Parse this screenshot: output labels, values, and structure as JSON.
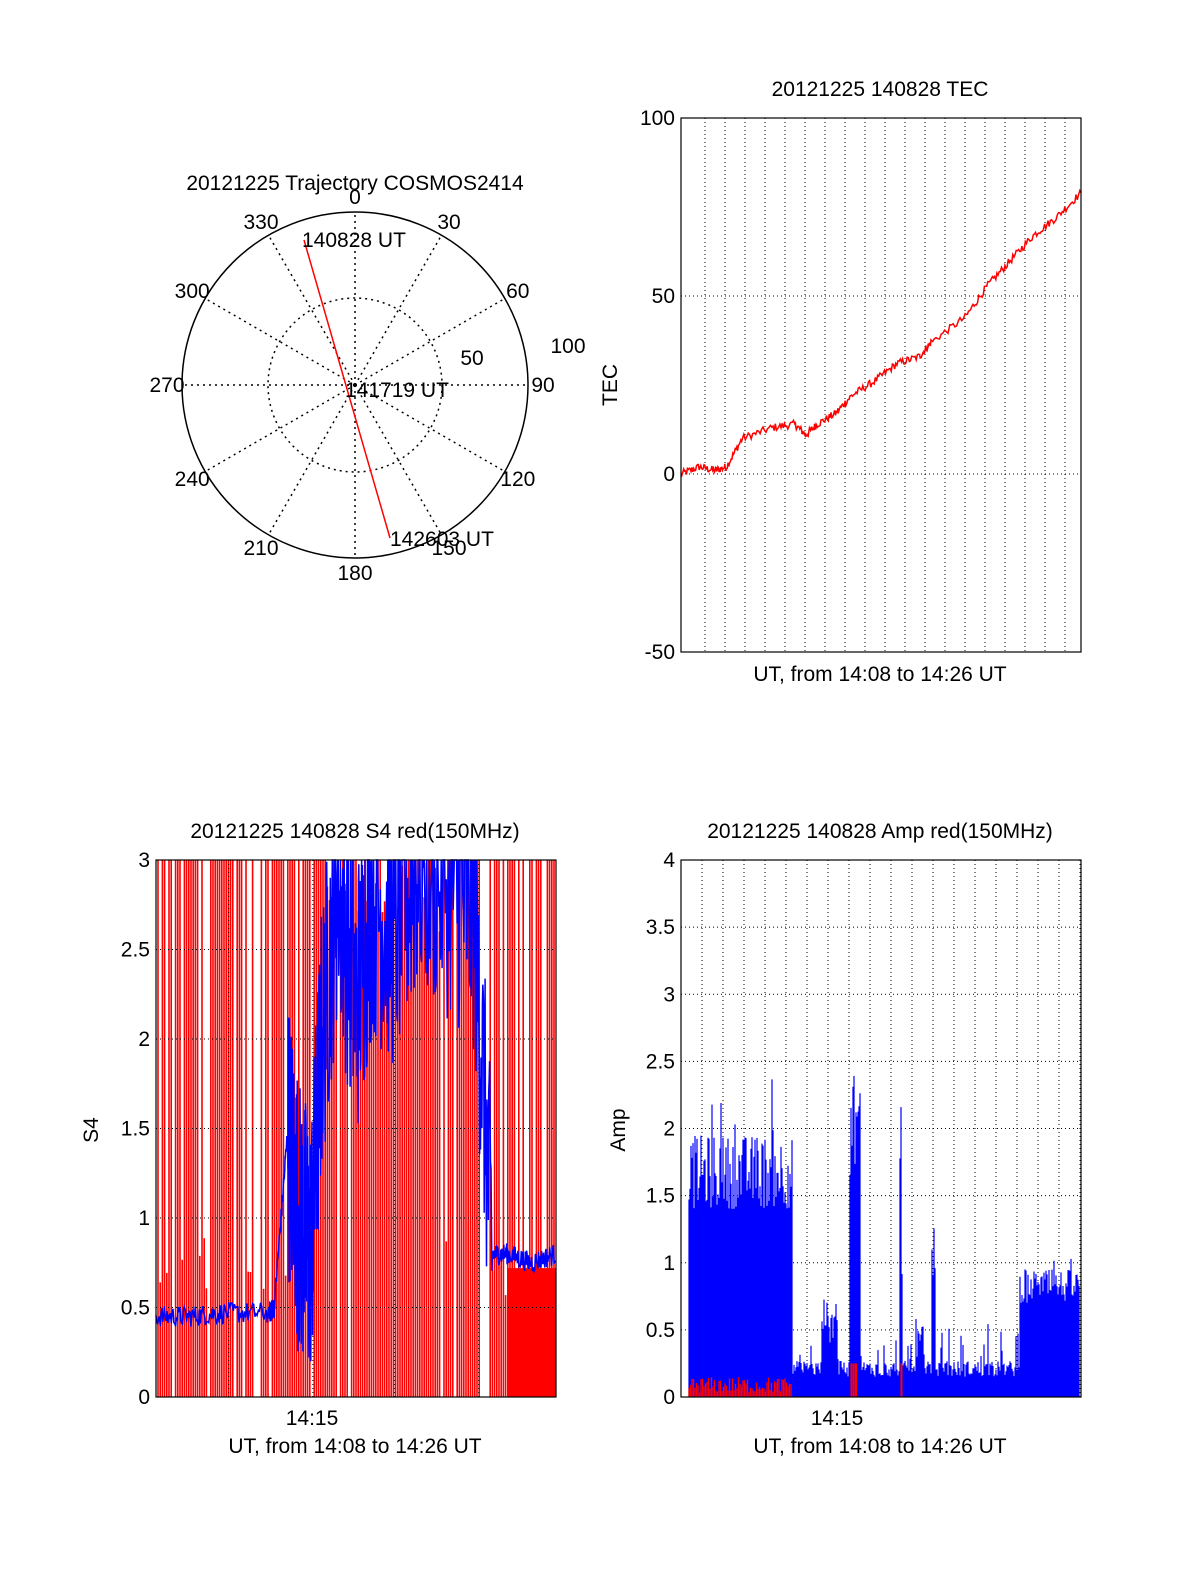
{
  "chart_data": [
    {
      "type": "polar",
      "title": "20121225 Trajectory COSMOS2414",
      "azimuth_labels": [
        "0",
        "30",
        "60",
        "90",
        "120",
        "150",
        "180",
        "210",
        "240",
        "270",
        "300",
        "330"
      ],
      "radial_labels": [
        "50",
        "100"
      ],
      "trajectory": {
        "color": "#ff0000",
        "start": {
          "label": "140828 UT",
          "azimuth_deg": 344,
          "zenith_deg": 86
        },
        "mid": {
          "label": "141719 UT"
        },
        "end": {
          "label": "142603 UT",
          "azimuth_deg": 166,
          "zenith_deg": 96
        }
      }
    },
    {
      "type": "line",
      "title": "20121225 140828 TEC",
      "xlabel": "UT, from 14:08 to 14:26 UT",
      "ylabel": "TEC",
      "ylim": [
        -50,
        100
      ],
      "yticks": [
        "-50",
        "0",
        "50",
        "100"
      ],
      "xlim_minutes": [
        0,
        17.6
      ],
      "grid": true,
      "series": [
        {
          "color": "#ff0000",
          "x_minutes": [
            0,
            0.8,
            1.5,
            2.0,
            2.7,
            4.0,
            5.0,
            5.5,
            6.0,
            6.8,
            7.5,
            8.5,
            9.5,
            10.5,
            11.0,
            12.5,
            13.5,
            14.5,
            15.5,
            16.5,
            17.6
          ],
          "values": [
            0,
            2,
            1,
            2,
            10,
            13,
            14,
            11,
            14,
            17,
            22,
            26,
            31,
            33,
            37,
            44,
            53,
            60,
            67,
            72,
            79
          ]
        }
      ]
    },
    {
      "type": "line",
      "title": "20121225 140828 S4 red(150MHz)",
      "xlabel": "UT, from 14:08 to 14:26 UT",
      "ylabel": "S4",
      "ylim": [
        0,
        3
      ],
      "yticks": [
        "0",
        "0.5",
        "1",
        "1.5",
        "2",
        "2.5",
        "3"
      ],
      "xticks": [
        "14:15"
      ],
      "xlim_minutes": [
        0,
        17.6
      ],
      "grid": true,
      "series": [
        {
          "color": "#ff0000",
          "description": "dense spikes",
          "y_range": [
            0,
            3
          ]
        },
        {
          "color": "#0000ff",
          "x_minutes": [
            0,
            1.5,
            3.0,
            5.0,
            5.2,
            5.8,
            6.3,
            6.8,
            7.3,
            8.0,
            8.8,
            9.5,
            10.5,
            11.5,
            13.0,
            14.0,
            14.8,
            15.5,
            16.5,
            17.6
          ],
          "values": [
            0.45,
            0.45,
            0.47,
            0.47,
            0.5,
            1.5,
            1.0,
            0.8,
            2.0,
            2.9,
            2.2,
            2.8,
            2.6,
            3.0,
            2.9,
            2.7,
            0.8,
            0.8,
            0.75,
            0.8
          ]
        }
      ]
    },
    {
      "type": "line",
      "title": "20121225 140828 Amp red(150MHz)",
      "xlabel": "UT, from 14:08 to 14:26 UT",
      "ylabel": "Amp",
      "ylim": [
        0,
        4
      ],
      "yticks": [
        "0",
        "0.5",
        "1",
        "1.5",
        "2",
        "2.5",
        "3",
        "3.5",
        "4"
      ],
      "xticks": [
        "14:15"
      ],
      "xlim_minutes": [
        0,
        17.6
      ],
      "grid": true,
      "series": [
        {
          "color": "#0000ff",
          "description": "dense amplitude bursts"
        },
        {
          "color": "#ff0000",
          "description": "low amplitude trace"
        }
      ]
    }
  ]
}
